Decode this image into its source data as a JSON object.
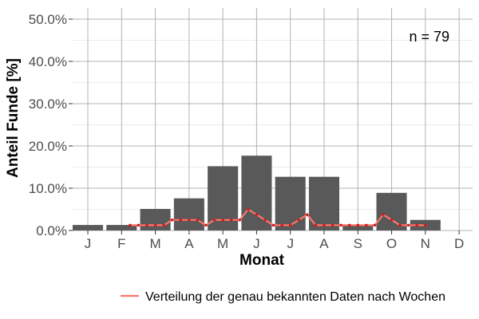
{
  "chart_data": {
    "type": "bar",
    "xlabel": "Monat",
    "ylabel": "Anteil Funde [%]",
    "ylim": [
      0,
      0.5
    ],
    "y_ticks": [
      {
        "value": 0.0,
        "label": "0.0%"
      },
      {
        "value": 0.1,
        "label": "10.0%"
      },
      {
        "value": 0.2,
        "label": "20.0%"
      },
      {
        "value": 0.3,
        "label": "30.0%"
      },
      {
        "value": 0.4,
        "label": "40.0%"
      },
      {
        "value": 0.5,
        "label": "50.0%"
      }
    ],
    "categories": [
      "J",
      "F",
      "M",
      "A",
      "M",
      "J",
      "J",
      "A",
      "S",
      "O",
      "N",
      "D"
    ],
    "values": [
      0.013,
      0.013,
      0.051,
      0.076,
      0.152,
      0.177,
      0.127,
      0.127,
      0.013,
      0.089,
      0.025,
      0.0
    ],
    "annotation": "n = 79",
    "line_series": {
      "name": "Verteilung der genau bekannten Daten nach Wochen",
      "color": "#f8766d",
      "point_color": "#d7191c",
      "x": [
        2.25,
        2.5,
        2.75,
        3.0,
        3.25,
        3.5,
        3.75,
        4.0,
        4.25,
        4.5,
        4.75,
        5.0,
        5.25,
        5.5,
        5.75,
        6.0,
        6.25,
        6.5,
        6.75,
        7.0,
        7.25,
        7.5,
        7.75,
        8.0,
        8.25,
        8.5,
        8.75,
        9.0,
        9.25,
        9.5,
        9.75,
        10.0,
        10.25,
        10.5,
        10.75,
        11.0
      ],
      "values": [
        0.0125,
        0.0125,
        0.0125,
        0.0125,
        0.0125,
        0.025,
        0.025,
        0.025,
        0.025,
        0.0125,
        0.025,
        0.025,
        0.025,
        0.025,
        0.05,
        0.0375,
        0.025,
        0.0125,
        0.0125,
        0.0125,
        0.025,
        0.0375,
        0.0125,
        0.0125,
        0.0125,
        0.0125,
        0.0125,
        0.0125,
        0.0125,
        0.0125,
        0.0375,
        0.025,
        0.0125,
        0.0125,
        0.0125,
        0.0125
      ]
    },
    "grid": true,
    "legend_position": "bottom",
    "colors": {
      "bar": "#595959",
      "grid": "#b3b3b3",
      "background": "#ffffff"
    }
  }
}
